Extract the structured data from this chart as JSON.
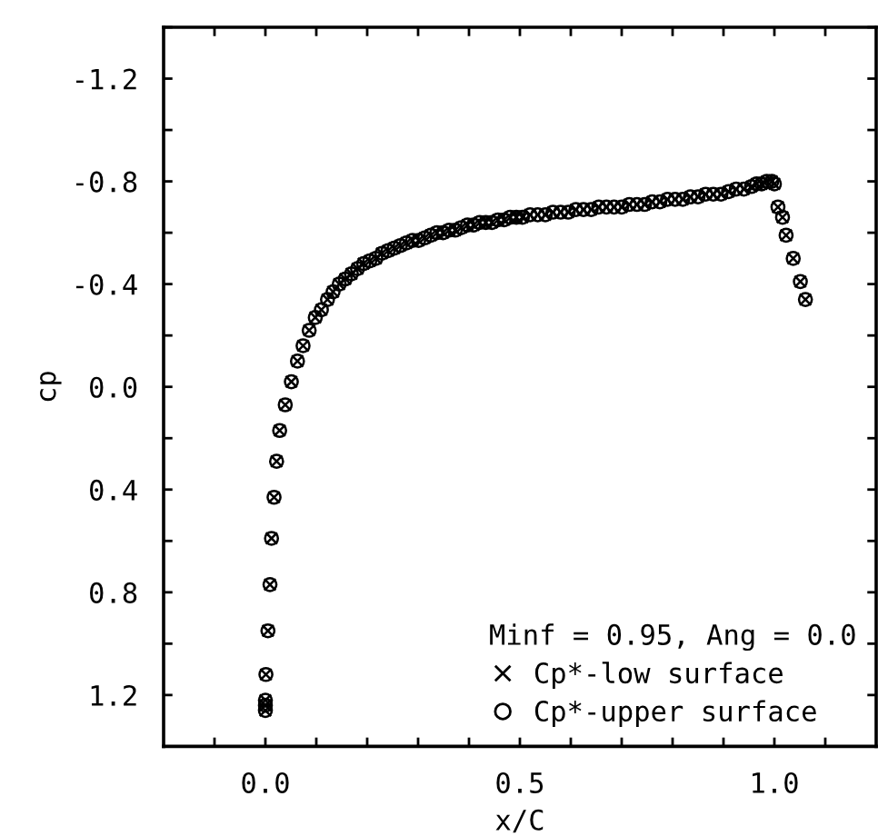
{
  "chart_data": {
    "type": "scatter",
    "xlabel": "x/C",
    "ylabel": "cp",
    "legend_title": "Minf = 0.95, Ang = 0.0",
    "legend": "bottom right",
    "grid": false,
    "xlim": [
      -0.2,
      1.2
    ],
    "ylim": [
      1.4,
      -1.4
    ],
    "xticks": [
      {
        "value": -0.1,
        "label": null
      },
      {
        "value": 0.0,
        "label": "0.0"
      },
      {
        "value": 0.1,
        "label": null
      },
      {
        "value": 0.2,
        "label": null
      },
      {
        "value": 0.3,
        "label": null
      },
      {
        "value": 0.4,
        "label": null
      },
      0.5,
      {
        "value": 0.6,
        "label": null
      },
      {
        "value": 0.7,
        "label": null
      },
      {
        "value": 0.8,
        "label": null
      },
      {
        "value": 0.9,
        "label": null
      },
      {
        "value": 1.0,
        "label": "1.0"
      },
      {
        "value": 1.1,
        "label": null
      }
    ],
    "yticks": [
      {
        "value": -1.4,
        "label": null
      },
      -1.2,
      {
        "value": -1.0,
        "label": null
      },
      -0.8,
      {
        "value": -0.6,
        "label": null
      },
      -0.4,
      {
        "value": -0.2,
        "label": null
      },
      {
        "value": 0.0,
        "label": "0.0"
      },
      {
        "value": 0.2,
        "label": null
      },
      0.4,
      {
        "value": 0.6,
        "label": null
      },
      0.8,
      {
        "value": 1.0,
        "label": null
      },
      1.2
    ],
    "x": [
      0.0,
      0.0,
      0.0,
      0.001,
      0.005,
      0.009,
      0.012,
      0.017,
      0.022,
      0.028,
      0.039,
      0.051,
      0.063,
      0.074,
      0.086,
      0.098,
      0.11,
      0.122,
      0.133,
      0.145,
      0.157,
      0.169,
      0.181,
      0.193,
      0.205,
      0.217,
      0.229,
      0.241,
      0.253,
      0.265,
      0.277,
      0.289,
      0.301,
      0.313,
      0.325,
      0.337,
      0.349,
      0.361,
      0.373,
      0.385,
      0.397,
      0.409,
      0.421,
      0.433,
      0.445,
      0.457,
      0.469,
      0.481,
      0.493,
      0.505,
      0.52,
      0.535,
      0.55,
      0.565,
      0.58,
      0.595,
      0.61,
      0.625,
      0.64,
      0.655,
      0.67,
      0.685,
      0.7,
      0.715,
      0.73,
      0.745,
      0.76,
      0.775,
      0.79,
      0.805,
      0.82,
      0.835,
      0.85,
      0.865,
      0.88,
      0.895,
      0.91,
      0.925,
      0.94,
      0.955,
      0.965,
      0.975,
      0.985,
      0.995,
      1.0,
      1.007,
      1.016,
      1.023,
      1.037,
      1.051,
      1.061
    ],
    "series": [
      {
        "name": "Cp*-low surface",
        "color": "#000000",
        "marker": "cross",
        "values": [
          1.26,
          1.24,
          1.22,
          1.12,
          0.95,
          0.77,
          0.59,
          0.43,
          0.29,
          0.17,
          0.07,
          -0.02,
          -0.1,
          -0.16,
          -0.22,
          -0.27,
          -0.3,
          -0.34,
          -0.37,
          -0.4,
          -0.42,
          -0.44,
          -0.46,
          -0.48,
          -0.49,
          -0.5,
          -0.52,
          -0.53,
          -0.54,
          -0.55,
          -0.56,
          -0.57,
          -0.57,
          -0.58,
          -0.59,
          -0.6,
          -0.6,
          -0.61,
          -0.61,
          -0.62,
          -0.63,
          -0.63,
          -0.64,
          -0.64,
          -0.64,
          -0.65,
          -0.65,
          -0.66,
          -0.66,
          -0.66,
          -0.67,
          -0.67,
          -0.67,
          -0.68,
          -0.68,
          -0.68,
          -0.69,
          -0.69,
          -0.69,
          -0.7,
          -0.7,
          -0.7,
          -0.7,
          -0.71,
          -0.71,
          -0.71,
          -0.72,
          -0.72,
          -0.73,
          -0.73,
          -0.73,
          -0.74,
          -0.74,
          -0.75,
          -0.75,
          -0.75,
          -0.76,
          -0.77,
          -0.77,
          -0.78,
          -0.79,
          -0.79,
          -0.8,
          -0.8,
          -0.79,
          -0.7,
          -0.66,
          -0.59,
          -0.5,
          -0.41,
          -0.34
        ]
      },
      {
        "name": "Cp*-upper surface",
        "color": "#000000",
        "marker": "circle",
        "values": [
          1.26,
          1.24,
          1.22,
          1.12,
          0.95,
          0.77,
          0.59,
          0.43,
          0.29,
          0.17,
          0.07,
          -0.02,
          -0.1,
          -0.16,
          -0.22,
          -0.27,
          -0.3,
          -0.34,
          -0.37,
          -0.4,
          -0.42,
          -0.44,
          -0.46,
          -0.48,
          -0.49,
          -0.5,
          -0.52,
          -0.53,
          -0.54,
          -0.55,
          -0.56,
          -0.57,
          -0.57,
          -0.58,
          -0.59,
          -0.6,
          -0.6,
          -0.61,
          -0.61,
          -0.62,
          -0.63,
          -0.63,
          -0.64,
          -0.64,
          -0.64,
          -0.65,
          -0.65,
          -0.66,
          -0.66,
          -0.66,
          -0.67,
          -0.67,
          -0.67,
          -0.68,
          -0.68,
          -0.68,
          -0.69,
          -0.69,
          -0.69,
          -0.7,
          -0.7,
          -0.7,
          -0.7,
          -0.71,
          -0.71,
          -0.71,
          -0.72,
          -0.72,
          -0.73,
          -0.73,
          -0.73,
          -0.74,
          -0.74,
          -0.75,
          -0.75,
          -0.75,
          -0.76,
          -0.77,
          -0.77,
          -0.78,
          -0.79,
          -0.79,
          -0.8,
          -0.8,
          -0.79,
          -0.7,
          -0.66,
          -0.59,
          -0.5,
          -0.41,
          -0.34
        ]
      }
    ]
  }
}
